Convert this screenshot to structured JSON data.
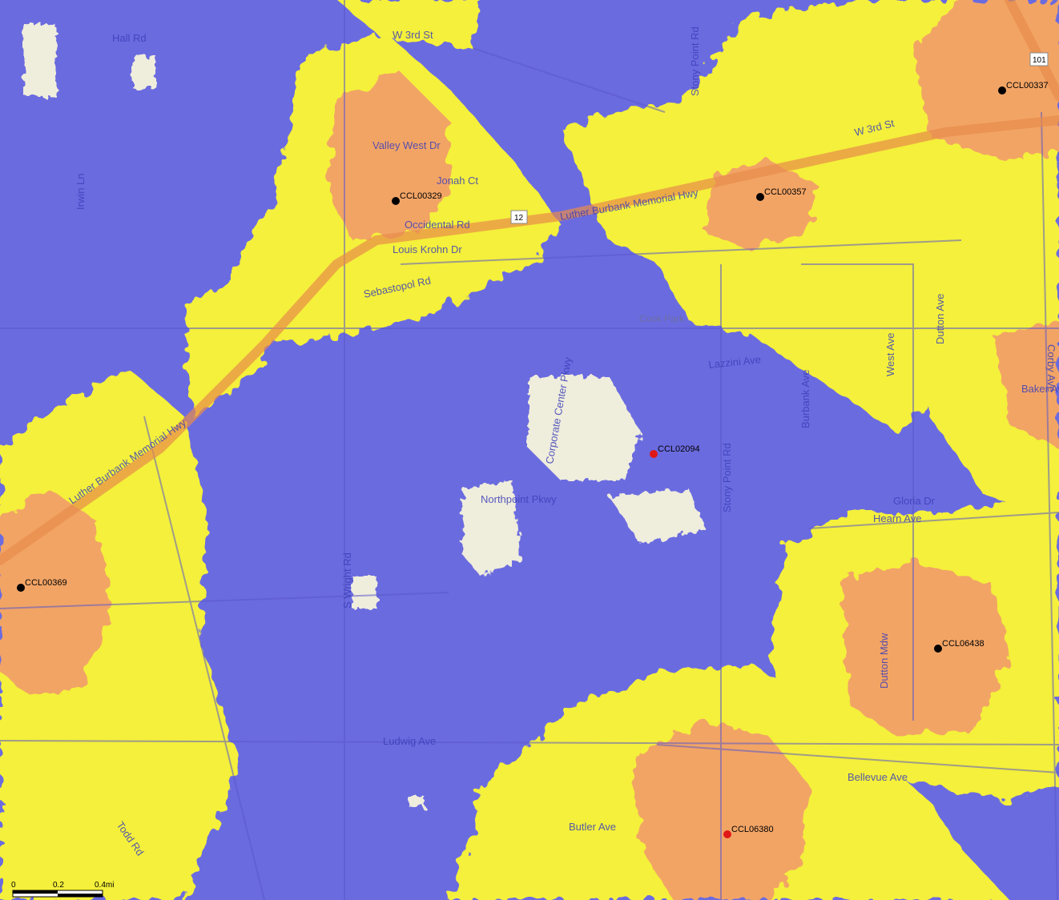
{
  "map": {
    "colors": {
      "background": "#6b6be0",
      "weak": "#f4f03a",
      "strong": "#f2a465",
      "no_service": "#efeddc",
      "road": "#5a58c8",
      "highway": "#e88c4a",
      "site_existing": "#000000",
      "site_proposed": "#e01818"
    },
    "road_labels": [
      "Hall Rd",
      "W 3rd St",
      "Valley West Dr",
      "Jonah Ct",
      "Occidental Rd",
      "Louis Krohn Dr",
      "Sebastopol Rd",
      "Luther Burbank Memorial Hwy",
      "Corporate Center Pkwy",
      "Northpoint Pkwy",
      "Stony Point Rd",
      "Lazzini Ave",
      "Dutton Ave",
      "West Ave",
      "Burbank Ave",
      "Gloria Dr",
      "Hearn Ave",
      "Dutton Mdw",
      "Bellevue Ave",
      "Ludwig Ave",
      "Butler Ave",
      "S Wright Rd",
      "Corby Ave",
      "Baker Ave",
      "Irwin Ln",
      "Todd Rd",
      "W 3rd St"
    ],
    "park_label": "Cook Park",
    "route_shield": "12",
    "route_shield_2": "101",
    "sites": [
      {
        "id": "CCL00337",
        "kind": "existing"
      },
      {
        "id": "CCL00329",
        "kind": "existing"
      },
      {
        "id": "CCL00357",
        "kind": "existing"
      },
      {
        "id": "CCL02094",
        "kind": "proposed"
      },
      {
        "id": "CCL00369",
        "kind": "existing"
      },
      {
        "id": "CCL06438",
        "kind": "existing"
      },
      {
        "id": "CCL06380",
        "kind": "proposed"
      }
    ],
    "scale": {
      "ticks": [
        "0",
        "0.2",
        "0.4mi"
      ]
    }
  }
}
